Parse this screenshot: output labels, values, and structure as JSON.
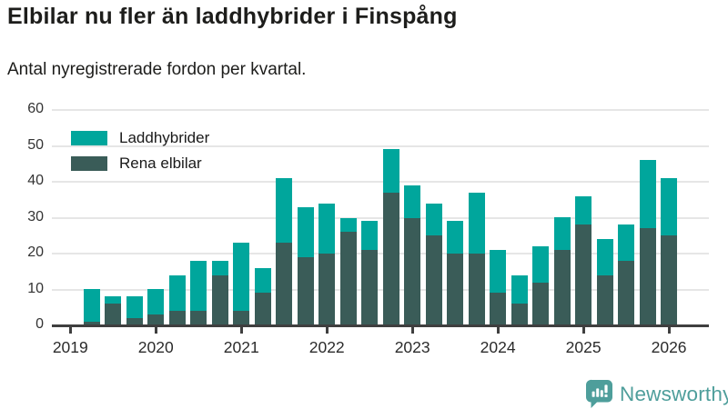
{
  "header": {
    "title": "Elbilar nu fler än laddhybrider i Finspång",
    "subtitle": "Antal nyregistrerade fordon per kvartal."
  },
  "legend": {
    "items": [
      {
        "label": "Laddhybrider",
        "color": "#00a69c"
      },
      {
        "label": "Rena elbilar",
        "color": "#3a5c58"
      }
    ],
    "position": "top-left"
  },
  "chart_data": {
    "type": "bar",
    "stacked": true,
    "x": [
      "2019 Q1",
      "2019 Q2",
      "2019 Q3",
      "2019 Q4",
      "2020 Q1",
      "2020 Q2",
      "2020 Q3",
      "2020 Q4",
      "2021 Q1",
      "2021 Q2",
      "2021 Q3",
      "2021 Q4",
      "2022 Q1",
      "2022 Q2",
      "2022 Q3",
      "2022 Q4",
      "2023 Q1",
      "2023 Q2",
      "2023 Q3",
      "2023 Q4",
      "2024 Q1",
      "2024 Q2",
      "2024 Q3",
      "2024 Q4",
      "2025 Q1",
      "2025 Q2",
      "2025 Q3",
      "2025 Q4",
      "2026 Q1"
    ],
    "series": [
      {
        "name": "Rena elbilar",
        "color": "#3a5c58",
        "values": [
          0,
          1,
          6,
          2,
          3,
          4,
          4,
          14,
          4,
          9,
          23,
          19,
          20,
          26,
          21,
          37,
          30,
          25,
          20,
          20,
          9,
          6,
          12,
          21,
          28,
          14,
          18,
          27,
          25
        ]
      },
      {
        "name": "Laddhybrider",
        "color": "#00a69c",
        "values": [
          0,
          9,
          2,
          6,
          7,
          10,
          14,
          4,
          19,
          7,
          18,
          14,
          14,
          4,
          8,
          12,
          9,
          9,
          9,
          17,
          12,
          8,
          10,
          9,
          8,
          10,
          10,
          19,
          16
        ]
      }
    ],
    "totals": [
      0,
      10,
      8,
      8,
      10,
      14,
      18,
      18,
      23,
      16,
      41,
      33,
      34,
      30,
      29,
      49,
      39,
      34,
      29,
      37,
      21,
      14,
      22,
      30,
      36,
      24,
      28,
      46,
      41
    ],
    "title": "Elbilar nu fler än laddhybrider i Finspång",
    "xlabel": "",
    "ylabel": "",
    "ylim": [
      0,
      60
    ],
    "yticks": [
      0,
      10,
      20,
      30,
      40,
      50,
      60
    ],
    "xticks": [
      "2019",
      "2020",
      "2021",
      "2022",
      "2023",
      "2024",
      "2025",
      "2026"
    ],
    "grid": "horizontal",
    "legend_position": "top-left"
  },
  "colors": {
    "laddhybrider": "#00a69c",
    "rena_elbilar": "#3a5c58",
    "gridline": "#e6e6e6",
    "axis": "#3f3f3f",
    "text": "#1d1d1b"
  },
  "branding": {
    "logo_text": "Newsworthy",
    "logo_icon": "bar-chart-speech-bubble",
    "logo_color": "#4e9e9b"
  }
}
